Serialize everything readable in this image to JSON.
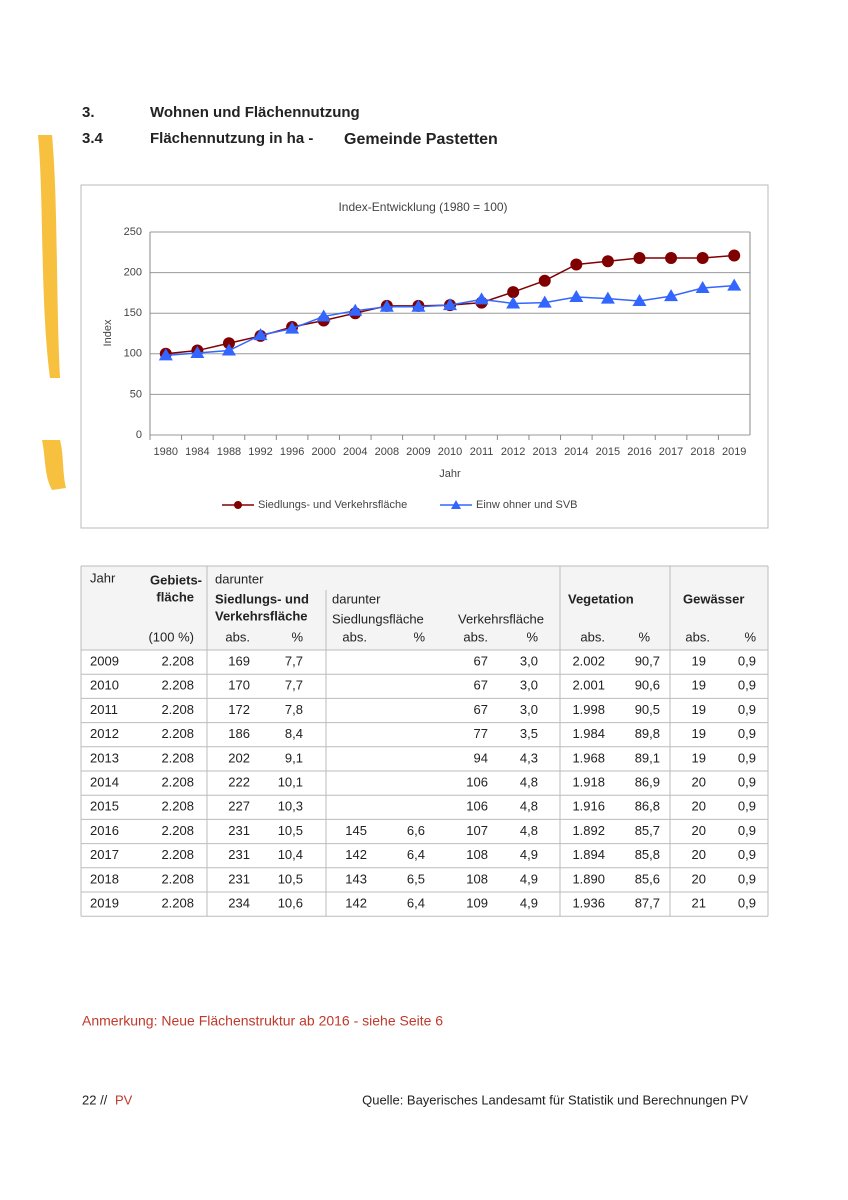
{
  "heading": {
    "num1": "3.",
    "title1": "Wohnen und Flächennutzung",
    "num2": "3.4",
    "title2": "Flächennutzung in ha -",
    "place": "Gemeinde Pastetten"
  },
  "chart_data": {
    "type": "line",
    "title": "Index-Entwicklung (1980 = 100)",
    "x_label": "Jahr",
    "y_label": "Index",
    "categories": [
      "1980",
      "1984",
      "1988",
      "1992",
      "1996",
      "2000",
      "2004",
      "2008",
      "2009",
      "2010",
      "2011",
      "2012",
      "2013",
      "2014",
      "2015",
      "2016",
      "2017",
      "2018",
      "2019"
    ],
    "series": [
      {
        "name": "Siedlungs- und Verkehrsfläche",
        "color": "#800000",
        "marker": "circle",
        "values": [
          100,
          104,
          113,
          122,
          133,
          141,
          150,
          159,
          159,
          160,
          163,
          176,
          190,
          210,
          214,
          218,
          218,
          218,
          221
        ]
      },
      {
        "name": "Einw ohner und SVB",
        "color": "#3366ff",
        "marker": "triangle",
        "values": [
          98,
          101,
          104,
          123,
          131,
          146,
          153,
          158,
          158,
          160,
          167,
          162,
          163,
          170,
          168,
          165,
          171,
          181,
          184
        ]
      }
    ],
    "ylim": [
      0,
      250
    ],
    "yticks": [
      0,
      50,
      100,
      150,
      200,
      250
    ],
    "grid": true,
    "legend": "bottom"
  },
  "table": {
    "header": [
      "Jahr",
      "Gebiets-",
      "fläche",
      "(100 %)",
      "darunter",
      "Siedlungs- und",
      "Verkehrsfläche",
      "abs.",
      "%",
      "darunter",
      "Siedlungsfläche",
      "abs.",
      "%",
      "Verkehrsfläche",
      "abs.",
      "%",
      "Vegetation",
      "abs.",
      "%",
      "Gewässer",
      "abs.",
      "%"
    ],
    "rows": [
      [
        "2009",
        "2.208",
        "169",
        "7,7",
        null,
        null,
        "67",
        "3,0",
        "2.002",
        "90,7",
        "19",
        "0,9"
      ],
      [
        "2010",
        "2.208",
        "170",
        "7,7",
        null,
        null,
        "67",
        "3,0",
        "2.001",
        "90,6",
        "19",
        "0,9"
      ],
      [
        "2011",
        "2.208",
        "172",
        "7,8",
        null,
        null,
        "67",
        "3,0",
        "1.998",
        "90,5",
        "19",
        "0,9"
      ],
      [
        "2012",
        "2.208",
        "186",
        "8,4",
        null,
        null,
        "77",
        "3,5",
        "1.984",
        "89,8",
        "19",
        "0,9"
      ],
      [
        "2013",
        "2.208",
        "202",
        "9,1",
        null,
        null,
        "94",
        "4,3",
        "1.968",
        "89,1",
        "19",
        "0,9"
      ],
      [
        "2014",
        "2.208",
        "222",
        "10,1",
        null,
        null,
        "106",
        "4,8",
        "1.918",
        "86,9",
        "20",
        "0,9"
      ],
      [
        "2015",
        "2.208",
        "227",
        "10,3",
        null,
        null,
        "106",
        "4,8",
        "1.916",
        "86,8",
        "20",
        "0,9"
      ],
      [
        "2016",
        "2.208",
        "231",
        "10,5",
        "145",
        "6,6",
        "107",
        "4,8",
        "1.892",
        "85,7",
        "20",
        "0,9"
      ],
      [
        "2017",
        "2.208",
        "231",
        "10,4",
        "142",
        "6,4",
        "108",
        "4,9",
        "1.894",
        "85,8",
        "20",
        "0,9"
      ],
      [
        "2018",
        "2.208",
        "231",
        "10,5",
        "143",
        "6,5",
        "108",
        "4,9",
        "1.890",
        "85,6",
        "20",
        "0,9"
      ],
      [
        "2019",
        "2.208",
        "234",
        "10,6",
        "142",
        "6,4",
        "109",
        "4,9",
        "1.936",
        "87,7",
        "21",
        "0,9"
      ]
    ]
  },
  "note": "Anmerkung: Neue Flächenstruktur ab 2016 - siehe Seite 6",
  "footer": {
    "page": "22 //",
    "tag": "PV",
    "source": "Quelle: Bayerisches Landesamt für Statistik und Berechnungen PV"
  }
}
